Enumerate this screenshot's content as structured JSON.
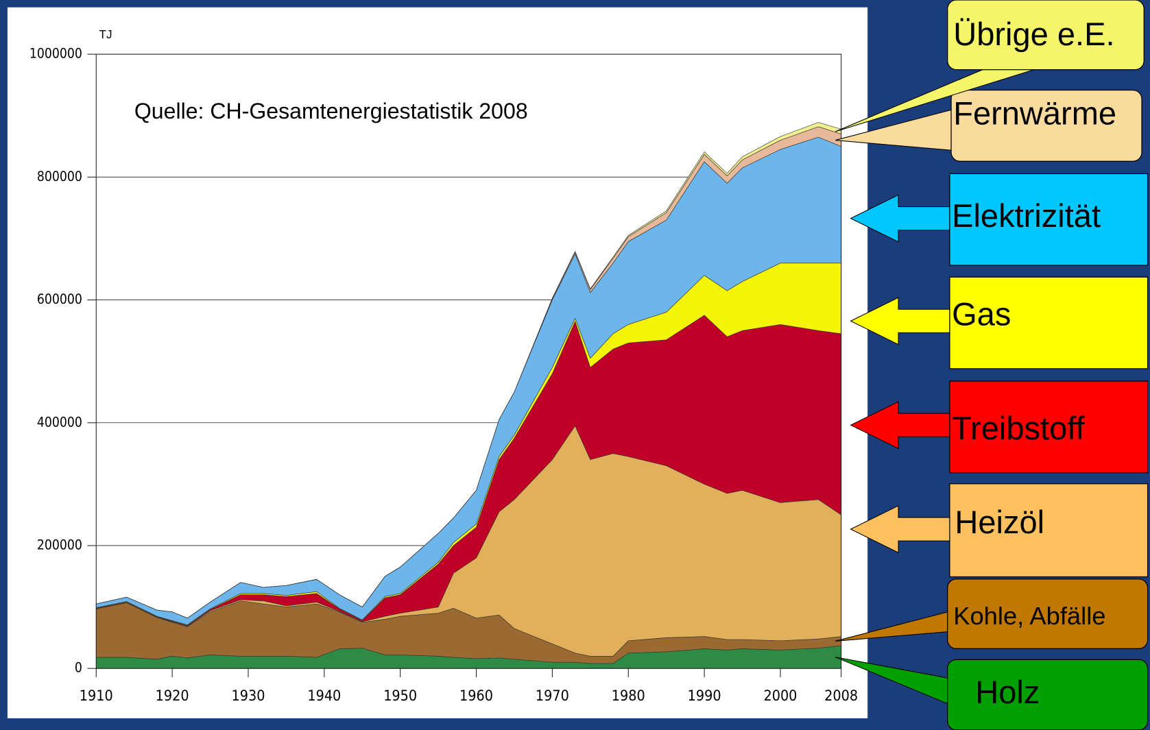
{
  "chart_data": {
    "type": "stacked_area",
    "y_label": "TJ",
    "annotation": "Quelle: CH-Gesamtenergiestatistik 2008",
    "x": [
      1910,
      1914,
      1918,
      1920,
      1922,
      1925,
      1929,
      1932,
      1935,
      1939,
      1942,
      1945,
      1948,
      1950,
      1955,
      1957,
      1960,
      1963,
      1965,
      1970,
      1973,
      1975,
      1978,
      1980,
      1985,
      1990,
      1993,
      1995,
      2000,
      2005,
      2008
    ],
    "xlim": [
      1910,
      2008
    ],
    "xticks": [
      1910,
      1920,
      1930,
      1940,
      1950,
      1960,
      1970,
      1980,
      1990,
      2000,
      2008
    ],
    "ylim": [
      0,
      1000000
    ],
    "yticks": [
      0,
      200000,
      400000,
      600000,
      800000,
      1000000
    ],
    "grid": true,
    "series": [
      {
        "name": "Holz",
        "color": "#2e8b45",
        "label_color": "#00a000",
        "values": [
          18000,
          18000,
          15000,
          20000,
          17000,
          22000,
          20000,
          20000,
          20000,
          18000,
          32000,
          33000,
          22000,
          22000,
          20000,
          18000,
          16000,
          17000,
          15000,
          10000,
          10000,
          8000,
          8000,
          25000,
          27000,
          32000,
          30000,
          32000,
          30000,
          33000,
          37000
        ]
      },
      {
        "name": "Kohle, Abfälle",
        "color": "#9b6a33",
        "label_color": "#c07800",
        "values": [
          79000,
          89000,
          68000,
          55000,
          51000,
          70000,
          90000,
          85000,
          80000,
          87000,
          60000,
          42000,
          58000,
          63000,
          70000,
          80000,
          66000,
          70000,
          50000,
          30000,
          15000,
          12000,
          12000,
          20000,
          23000,
          20000,
          17000,
          15000,
          15000,
          15000,
          15000
        ]
      },
      {
        "name": "Heizöl",
        "color": "#e2b05a",
        "label_color": "#ffc060",
        "values": [
          0,
          0,
          0,
          1000,
          1000,
          2000,
          2000,
          5000,
          2000,
          3000,
          1000,
          1000,
          5000,
          5000,
          10000,
          57000,
          98000,
          168000,
          210000,
          300000,
          370000,
          320000,
          330000,
          300000,
          280000,
          248000,
          238000,
          243000,
          225000,
          227000,
          198000
        ]
      },
      {
        "name": "Treibstoff",
        "color": "#c00026",
        "label_color": "#ff0000",
        "values": [
          1000,
          1000,
          1000,
          1000,
          1000,
          2000,
          8000,
          10000,
          15000,
          14000,
          4000,
          2000,
          30000,
          30000,
          70000,
          45000,
          50000,
          85000,
          100000,
          140000,
          170000,
          150000,
          170000,
          185000,
          205000,
          275000,
          255000,
          260000,
          290000,
          275000,
          295000
        ]
      },
      {
        "name": "Gas",
        "color": "#f5f50a",
        "label_color": "#ffff00",
        "values": [
          1000,
          1000,
          1000,
          1000,
          1000,
          1000,
          2000,
          2000,
          2000,
          3000,
          1000,
          1000,
          2000,
          2000,
          3000,
          5000,
          5000,
          5000,
          5000,
          10000,
          5000,
          15000,
          25000,
          30000,
          45000,
          65000,
          75000,
          80000,
          100000,
          110000,
          115000
        ]
      },
      {
        "name": "Elektrizität",
        "color": "#6cb6ec",
        "label_color": "#00c8ff",
        "values": [
          6000,
          7000,
          10000,
          14000,
          11000,
          11000,
          18000,
          10000,
          16000,
          20000,
          22000,
          21000,
          33000,
          43000,
          47000,
          40000,
          55000,
          60000,
          70000,
          110000,
          105000,
          107000,
          115000,
          135000,
          150000,
          185000,
          175000,
          185000,
          185000,
          205000,
          190000
        ]
      },
      {
        "name": "Fernwärme",
        "color": "#e8b89a",
        "label_color": "#fadb9e",
        "values": [
          0,
          0,
          0,
          0,
          0,
          0,
          0,
          0,
          0,
          0,
          0,
          0,
          0,
          0,
          0,
          0,
          0,
          0,
          0,
          2000,
          3000,
          5000,
          8000,
          8000,
          12000,
          12000,
          12000,
          13000,
          15000,
          17000,
          20000
        ]
      },
      {
        "name": "Übrige e.E.",
        "color": "#f0f090",
        "label_color": "#f5f56a",
        "values": [
          0,
          0,
          0,
          0,
          0,
          0,
          0,
          0,
          0,
          0,
          0,
          0,
          0,
          0,
          0,
          0,
          0,
          0,
          0,
          1000,
          1000,
          1000,
          2000,
          2000,
          3000,
          4000,
          4000,
          5000,
          6000,
          7000,
          8000
        ]
      }
    ]
  }
}
